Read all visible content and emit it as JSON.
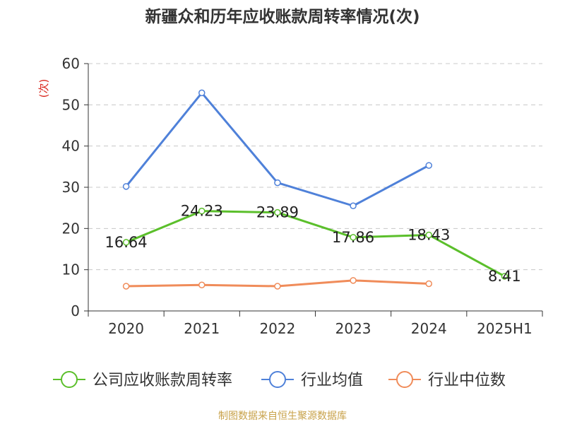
{
  "chart_data": {
    "type": "line",
    "title": "新疆众和历年应收账款周转率情况(次)",
    "ylabel": "(次)",
    "ylim": [
      0,
      60
    ],
    "yticks": [
      0,
      10,
      20,
      30,
      40,
      50,
      60
    ],
    "categories": [
      "2020",
      "2021",
      "2022",
      "2023",
      "2024",
      "2025H1"
    ],
    "grid": true,
    "legend_position": "bottom",
    "series": [
      {
        "name": "公司应收账款周转率",
        "color": "#5bbf2b",
        "values": [
          16.64,
          24.23,
          23.89,
          17.86,
          18.43,
          8.41
        ],
        "labels": [
          "16.64",
          "24.23",
          "23.89",
          "17.86",
          "18.43",
          "8.41"
        ]
      },
      {
        "name": "行业均值",
        "color": "#4f81d9",
        "values": [
          30.2,
          52.9,
          31.1,
          25.5,
          35.3,
          null
        ]
      },
      {
        "name": "行业中位数",
        "color": "#f08c5a",
        "values": [
          6.0,
          6.3,
          6.0,
          7.4,
          6.6,
          null
        ]
      }
    ]
  },
  "footer": {
    "source": "制图数据来自恒生聚源数据库"
  }
}
